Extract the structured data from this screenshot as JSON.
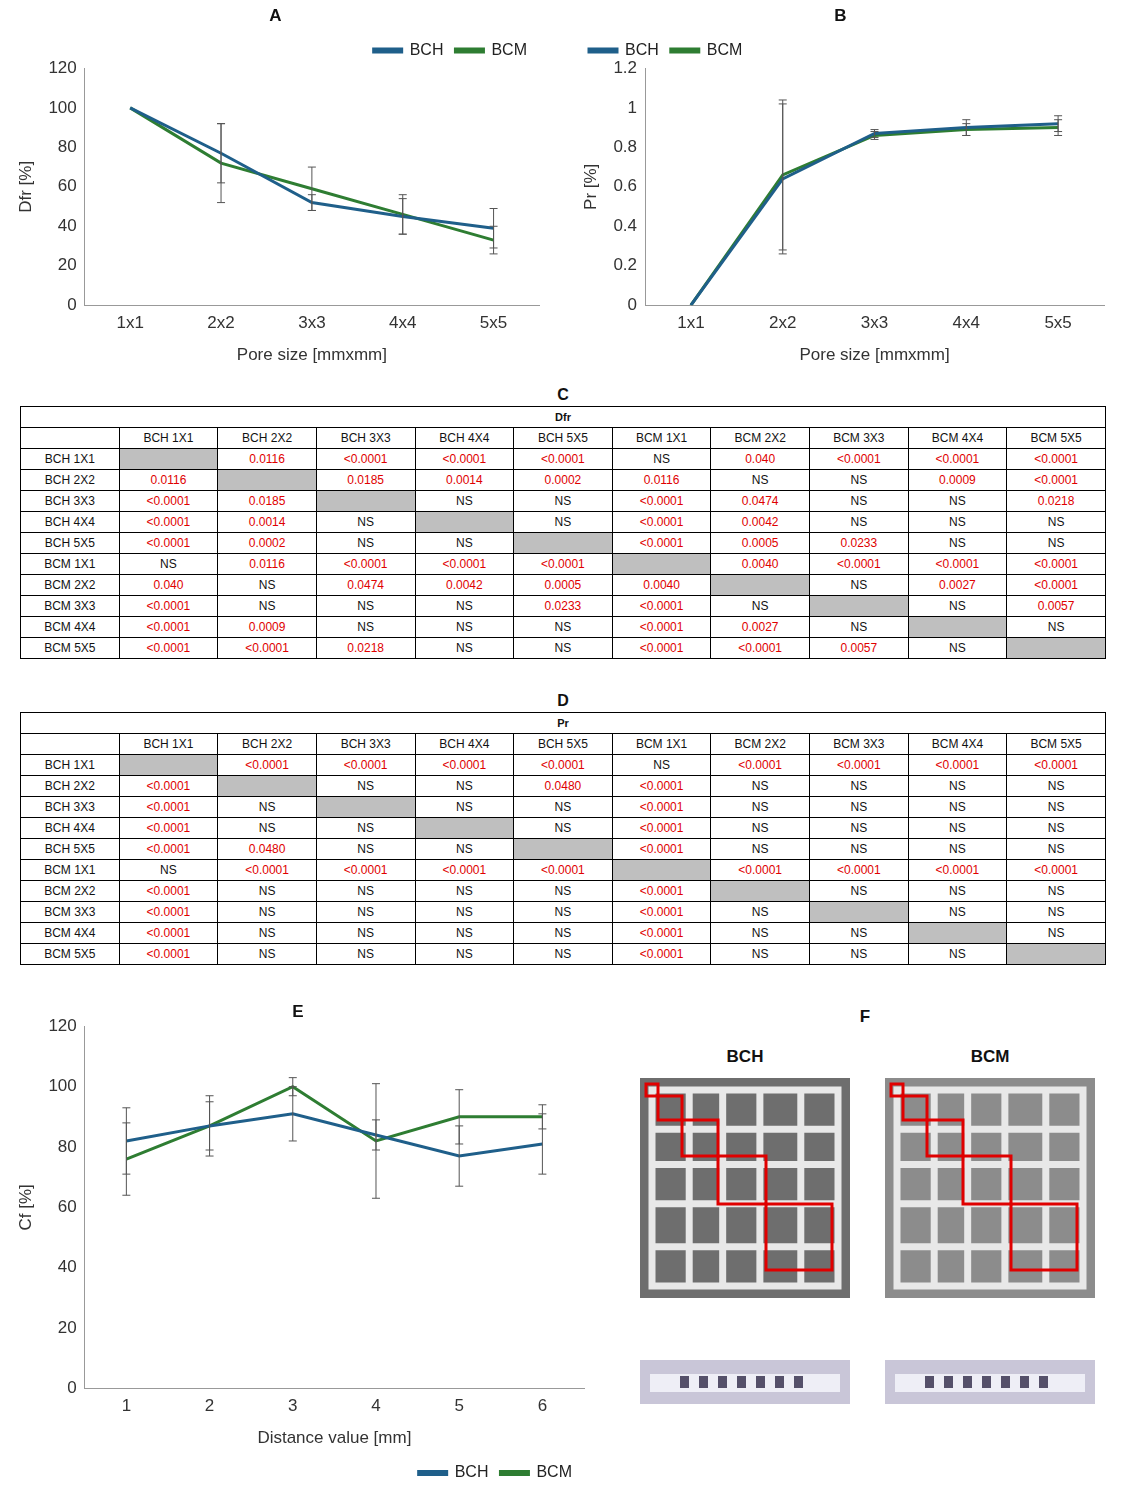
{
  "chart_data": [
    {
      "type": "line",
      "title": "A",
      "categories": [
        "1x1",
        "2x2",
        "3x3",
        "4x4",
        "5x5"
      ],
      "x_label": "Pore size [mmxmm]",
      "y_label": "Dfr [%]",
      "ylim": [
        0,
        120
      ],
      "yticks": [
        0,
        20,
        40,
        60,
        80,
        100,
        120
      ],
      "grid": false,
      "legend": "top right",
      "series": [
        {
          "name": "BCH",
          "color": "#1f5f8a",
          "values": [
            100,
            77,
            52,
            45,
            39
          ],
          "errors": [
            0,
            15,
            4,
            9,
            10
          ]
        },
        {
          "name": "BCM",
          "color": "#2e7d32",
          "values": [
            100,
            72,
            59,
            46,
            33
          ],
          "errors": [
            0,
            20,
            11,
            10,
            7
          ]
        }
      ]
    },
    {
      "type": "line",
      "title": "B",
      "categories": [
        "1x1",
        "2x2",
        "3x3",
        "4x4",
        "5x5"
      ],
      "x_label": "Pore size [mmxmm]",
      "y_label": "Pr [%]",
      "ylim": [
        0,
        1.2
      ],
      "yticks": [
        0,
        0.2,
        0.4,
        0.6,
        0.8,
        1,
        1.2
      ],
      "grid": false,
      "legend": "top left",
      "series": [
        {
          "name": "BCH",
          "color": "#1f5f8a",
          "values": [
            0,
            0.64,
            0.87,
            0.9,
            0.92
          ],
          "errors": [
            0,
            0.38,
            0.02,
            0.04,
            0.04
          ]
        },
        {
          "name": "BCM",
          "color": "#2e7d32",
          "values": [
            0,
            0.66,
            0.86,
            0.89,
            0.9
          ],
          "errors": [
            0,
            0.38,
            0.02,
            0.03,
            0.04
          ]
        }
      ]
    },
    {
      "type": "line",
      "title": "E",
      "categories": [
        "1",
        "2",
        "3",
        "4",
        "5",
        "6"
      ],
      "x_label": "Distance value [mm]",
      "y_label": "Cf [%]",
      "ylim": [
        0,
        120
      ],
      "yticks": [
        0,
        20,
        40,
        60,
        80,
        100,
        120
      ],
      "grid": false,
      "legend": "bottom right",
      "series": [
        {
          "name": "BCH",
          "color": "#1f5f8a",
          "values": [
            82,
            87,
            91,
            84,
            77,
            81
          ],
          "errors": [
            11,
            10,
            9,
            5,
            10,
            10
          ]
        },
        {
          "name": "BCM",
          "color": "#2e7d32",
          "values": [
            76,
            87,
            100,
            82,
            90,
            90
          ],
          "errors": [
            12,
            8,
            3,
            19,
            9,
            4
          ]
        }
      ]
    }
  ],
  "tables": [
    {
      "label": "C",
      "title": "Dfr",
      "columns": [
        "BCH 1X1",
        "BCH 2X2",
        "BCH 3X3",
        "BCH 4X4",
        "BCH 5X5",
        "BCM 1X1",
        "BCM 2X2",
        "BCM 3X3",
        "BCM 4X4",
        "BCM 5X5"
      ],
      "rows": [
        {
          "label": "BCH 1X1",
          "cells": [
            null,
            "0.0116",
            "<0.0001",
            "<0.0001",
            "<0.0001",
            "NS",
            "0.040",
            "<0.0001",
            "<0.0001",
            "<0.0001"
          ]
        },
        {
          "label": "BCH 2X2",
          "cells": [
            "0.0116",
            null,
            "0.0185",
            "0.0014",
            "0.0002",
            "0.0116",
            "NS",
            "NS",
            "0.0009",
            "<0.0001"
          ]
        },
        {
          "label": "BCH 3X3",
          "cells": [
            "<0.0001",
            "0.0185",
            null,
            "NS",
            "NS",
            "<0.0001",
            "0.0474",
            "NS",
            "NS",
            "0.0218"
          ]
        },
        {
          "label": "BCH 4X4",
          "cells": [
            "<0.0001",
            "0.0014",
            "NS",
            null,
            "NS",
            "<0.0001",
            "0.0042",
            "NS",
            "NS",
            "NS"
          ]
        },
        {
          "label": "BCH 5X5",
          "cells": [
            "<0.0001",
            "0.0002",
            "NS",
            "NS",
            null,
            "<0.0001",
            "0.0005",
            "0.0233",
            "NS",
            "NS"
          ]
        },
        {
          "label": "BCM 1X1",
          "cells": [
            "NS",
            "0.0116",
            "<0.0001",
            "<0.0001",
            "<0.0001",
            null,
            "0.0040",
            "<0.0001",
            "<0.0001",
            "<0.0001"
          ]
        },
        {
          "label": "BCM 2X2",
          "cells": [
            "0.040",
            "NS",
            "0.0474",
            "0.0042",
            "0.0005",
            "0.0040",
            null,
            "NS",
            "0.0027",
            "<0.0001"
          ]
        },
        {
          "label": "BCM 3X3",
          "cells": [
            "<0.0001",
            "NS",
            "NS",
            "NS",
            "0.0233",
            "<0.0001",
            "NS",
            null,
            "NS",
            "0.0057"
          ]
        },
        {
          "label": "BCM 4X4",
          "cells": [
            "<0.0001",
            "0.0009",
            "NS",
            "NS",
            "NS",
            "<0.0001",
            "0.0027",
            "NS",
            null,
            "NS"
          ]
        },
        {
          "label": "BCM 5X5",
          "cells": [
            "<0.0001",
            "<0.0001",
            "0.0218",
            "NS",
            "NS",
            "<0.0001",
            "<0.0001",
            "0.0057",
            "NS",
            null
          ]
        }
      ]
    },
    {
      "label": "D",
      "title": "Pr",
      "columns": [
        "BCH 1X1",
        "BCH 2X2",
        "BCH 3X3",
        "BCH 4X4",
        "BCH 5X5",
        "BCM 1X1",
        "BCM 2X2",
        "BCM 3X3",
        "BCM 4X4",
        "BCM 5X5"
      ],
      "rows": [
        {
          "label": "BCH 1X1",
          "cells": [
            null,
            "<0.0001",
            "<0.0001",
            "<0.0001",
            "<0.0001",
            "NS",
            "<0.0001",
            "<0.0001",
            "<0.0001",
            "<0.0001"
          ]
        },
        {
          "label": "BCH 2X2",
          "cells": [
            "<0.0001",
            null,
            "NS",
            "NS",
            "0.0480",
            "<0.0001",
            "NS",
            "NS",
            "NS",
            "NS"
          ]
        },
        {
          "label": "BCH 3X3",
          "cells": [
            "<0.0001",
            "NS",
            null,
            "NS",
            "NS",
            "<0.0001",
            "NS",
            "NS",
            "NS",
            "NS"
          ]
        },
        {
          "label": "BCH 4X4",
          "cells": [
            "<0.0001",
            "NS",
            "NS",
            null,
            "NS",
            "<0.0001",
            "NS",
            "NS",
            "NS",
            "NS"
          ]
        },
        {
          "label": "BCH 5X5",
          "cells": [
            "<0.0001",
            "0.0480",
            "NS",
            "NS",
            null,
            "<0.0001",
            "NS",
            "NS",
            "NS",
            "NS"
          ]
        },
        {
          "label": "BCM 1X1",
          "cells": [
            "NS",
            "<0.0001",
            "<0.0001",
            "<0.0001",
            "<0.0001",
            null,
            "<0.0001",
            "<0.0001",
            "<0.0001",
            "<0.0001"
          ]
        },
        {
          "label": "BCM 2X2",
          "cells": [
            "<0.0001",
            "NS",
            "NS",
            "NS",
            "NS",
            "<0.0001",
            null,
            "NS",
            "NS",
            "NS"
          ]
        },
        {
          "label": "BCM 3X3",
          "cells": [
            "<0.0001",
            "NS",
            "NS",
            "NS",
            "NS",
            "<0.0001",
            "NS",
            null,
            "NS",
            "NS"
          ]
        },
        {
          "label": "BCM 4X4",
          "cells": [
            "<0.0001",
            "NS",
            "NS",
            "NS",
            "NS",
            "<0.0001",
            "NS",
            "NS",
            null,
            "NS"
          ]
        },
        {
          "label": "BCM 5X5",
          "cells": [
            "<0.0001",
            "NS",
            "NS",
            "NS",
            "NS",
            "<0.0001",
            "NS",
            "NS",
            "NS",
            null
          ]
        }
      ]
    }
  ],
  "photos": {
    "label": "F",
    "items": [
      "BCH",
      "BCM"
    ]
  }
}
